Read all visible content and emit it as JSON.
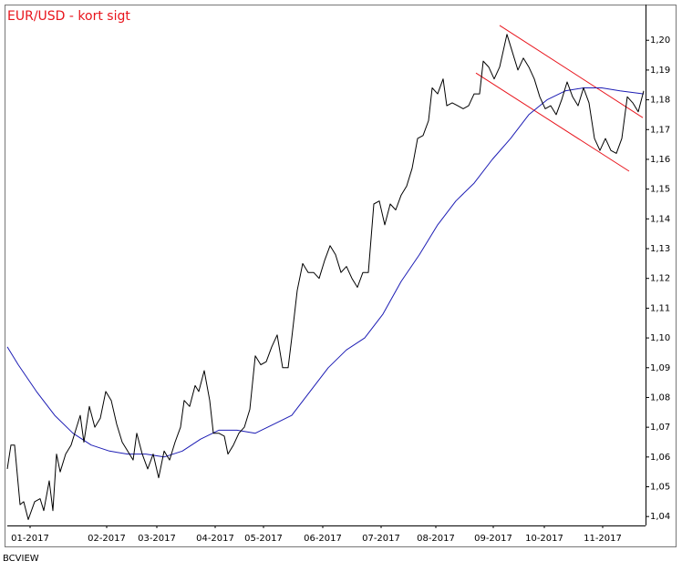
{
  "chart_data": {
    "type": "line",
    "title": "EUR/USD - kort sigt",
    "footer": "BCVIEW",
    "xlim": [
      0,
      700
    ],
    "ylim": [
      1.037,
      1.212
    ],
    "xticks": [
      {
        "value": 25,
        "label": "01-2017"
      },
      {
        "value": 109,
        "label": "02-2017"
      },
      {
        "value": 164,
        "label": "03-2017"
      },
      {
        "value": 228,
        "label": "04-2017"
      },
      {
        "value": 281,
        "label": "05-2017"
      },
      {
        "value": 346,
        "label": "06-2017"
      },
      {
        "value": 410,
        "label": "07-2017"
      },
      {
        "value": 470,
        "label": "08-2017"
      },
      {
        "value": 533,
        "label": "09-2017"
      },
      {
        "value": 589,
        "label": "10-2017"
      },
      {
        "value": 653,
        "label": "11-2017"
      }
    ],
    "yticks": [
      {
        "value": 1.04,
        "label": "1,04"
      },
      {
        "value": 1.05,
        "label": "1,05"
      },
      {
        "value": 1.06,
        "label": "1,06"
      },
      {
        "value": 1.07,
        "label": "1,07"
      },
      {
        "value": 1.08,
        "label": "1,08"
      },
      {
        "value": 1.09,
        "label": "1,09"
      },
      {
        "value": 1.1,
        "label": "1,10"
      },
      {
        "value": 1.11,
        "label": "1,11"
      },
      {
        "value": 1.12,
        "label": "1,12"
      },
      {
        "value": 1.13,
        "label": "1,13"
      },
      {
        "value": 1.14,
        "label": "1,14"
      },
      {
        "value": 1.15,
        "label": "1,15"
      },
      {
        "value": 1.16,
        "label": "1,16"
      },
      {
        "value": 1.17,
        "label": "1,17"
      },
      {
        "value": 1.18,
        "label": "1,18"
      },
      {
        "value": 1.19,
        "label": "1,19"
      },
      {
        "value": 1.2,
        "label": "1,20"
      }
    ],
    "series": [
      {
        "color": "#000000",
        "x": [
          0,
          4,
          8,
          14,
          18,
          23,
          30,
          36,
          40,
          46,
          50,
          54,
          58,
          64,
          70,
          76,
          80,
          84,
          90,
          96,
          102,
          108,
          114,
          120,
          126,
          132,
          138,
          142,
          148,
          154,
          160,
          166,
          172,
          178,
          184,
          190,
          194,
          200,
          206,
          210,
          216,
          222,
          226,
          232,
          238,
          242,
          248,
          254,
          260,
          266,
          272,
          278,
          284,
          290,
          296,
          302,
          308,
          312,
          318,
          324,
          330,
          336,
          342,
          348,
          354,
          360,
          366,
          372,
          378,
          384,
          390,
          396,
          402,
          408,
          414,
          420,
          426,
          432,
          438,
          444,
          450,
          456,
          462,
          466,
          472,
          478,
          482,
          488,
          494,
          500,
          506,
          512,
          518,
          522,
          528,
          534,
          540,
          548,
          554,
          560,
          566,
          572,
          578,
          584,
          590,
          596,
          602,
          608,
          614,
          620,
          626,
          632,
          638,
          644,
          650,
          656,
          662,
          668,
          674,
          680,
          686,
          692,
          698
        ],
        "values": [
          1.056,
          1.064,
          1.064,
          1.044,
          1.045,
          1.039,
          1.045,
          1.046,
          1.042,
          1.052,
          1.042,
          1.061,
          1.055,
          1.061,
          1.064,
          1.07,
          1.074,
          1.065,
          1.077,
          1.07,
          1.073,
          1.082,
          1.079,
          1.071,
          1.065,
          1.062,
          1.059,
          1.068,
          1.061,
          1.056,
          1.061,
          1.053,
          1.062,
          1.059,
          1.065,
          1.07,
          1.079,
          1.077,
          1.084,
          1.082,
          1.089,
          1.079,
          1.068,
          1.068,
          1.067,
          1.061,
          1.064,
          1.068,
          1.07,
          1.076,
          1.094,
          1.091,
          1.092,
          1.097,
          1.101,
          1.09,
          1.09,
          1.1,
          1.116,
          1.125,
          1.122,
          1.122,
          1.12,
          1.126,
          1.131,
          1.128,
          1.122,
          1.124,
          1.12,
          1.117,
          1.122,
          1.122,
          1.145,
          1.146,
          1.138,
          1.145,
          1.143,
          1.148,
          1.151,
          1.157,
          1.167,
          1.168,
          1.173,
          1.184,
          1.182,
          1.187,
          1.178,
          1.179,
          1.178,
          1.177,
          1.178,
          1.182,
          1.182,
          1.193,
          1.191,
          1.187,
          1.191,
          1.202,
          1.196,
          1.19,
          1.194,
          1.191,
          1.187,
          1.181,
          1.177,
          1.178,
          1.175,
          1.18,
          1.186,
          1.181,
          1.178,
          1.184,
          1.179,
          1.167,
          1.163,
          1.167,
          1.163,
          1.162,
          1.167,
          1.181,
          1.179,
          1.176,
          1.183
        ]
      },
      {
        "color": "#1c1cb4",
        "x": [
          0,
          12,
          32,
          52,
          72,
          92,
          112,
          132,
          152,
          172,
          192,
          212,
          232,
          252,
          272,
          292,
          312,
          332,
          352,
          372,
          392,
          412,
          432,
          452,
          472,
          492,
          512,
          532,
          552,
          572,
          592,
          612,
          632,
          652,
          672,
          698
        ],
        "values": [
          1.097,
          1.091,
          1.082,
          1.074,
          1.068,
          1.064,
          1.062,
          1.061,
          1.061,
          1.06,
          1.062,
          1.066,
          1.069,
          1.069,
          1.068,
          1.071,
          1.074,
          1.082,
          1.09,
          1.096,
          1.1,
          1.108,
          1.119,
          1.128,
          1.138,
          1.146,
          1.152,
          1.16,
          1.167,
          1.175,
          1.18,
          1.183,
          1.184,
          1.184,
          1.183,
          1.182
        ]
      }
    ],
    "trend_lines": [
      {
        "color": "#e8141c",
        "x": [
          540,
          697
        ],
        "values": [
          1.205,
          1.174
        ]
      },
      {
        "color": "#e8141c",
        "x": [
          514,
          682
        ],
        "values": [
          1.189,
          1.156
        ]
      }
    ]
  }
}
